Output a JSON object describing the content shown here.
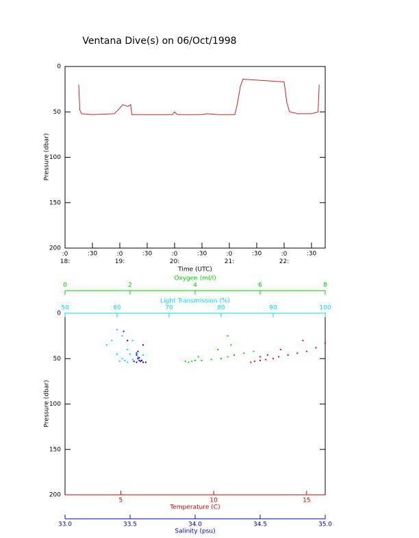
{
  "chart_data": [
    {
      "type": "line",
      "title": "Ventana Dive(s) on 06/Oct/1998",
      "xlabel": "Time (UTC)",
      "ylabel": "Pressure (dbar)",
      "xlim": [
        18,
        22.75
      ],
      "xticks": [
        {
          "value": 18,
          "label": ":0\n18:"
        },
        {
          "value": 18.5,
          "label": ":30"
        },
        {
          "value": 19,
          "label": ":0\n19:"
        },
        {
          "value": 19.5,
          "label": ":30"
        },
        {
          "value": 20,
          "label": ":0\n20:"
        },
        {
          "value": 20.5,
          "label": ":30"
        },
        {
          "value": 21,
          "label": ":0\n21:"
        },
        {
          "value": 21.5,
          "label": ":30"
        },
        {
          "value": 22,
          "label": ":0\n22:"
        },
        {
          "value": 22.5,
          "label": ":30"
        }
      ],
      "ylim": [
        0,
        200
      ],
      "yticks": [
        0,
        50,
        100,
        150,
        200
      ],
      "y_inverted": true,
      "series": [
        {
          "color": "#cc2222",
          "x": [
            18.25,
            18.27,
            18.3,
            18.5,
            18.9,
            19.0,
            19.05,
            19.15,
            19.2,
            19.22,
            19.5,
            19.96,
            20.0,
            20.05,
            20.5,
            20.6,
            20.8,
            21.1,
            21.15,
            21.2,
            21.25,
            21.5,
            22.0,
            22.05,
            22.1,
            22.25,
            22.5,
            22.62,
            22.64
          ],
          "values": [
            20,
            48,
            52,
            53,
            52,
            46,
            42,
            44,
            42,
            53,
            53,
            53,
            50,
            53,
            53,
            52,
            53,
            53,
            40,
            22,
            14,
            15,
            17,
            40,
            50,
            52,
            52,
            50,
            20
          ]
        }
      ]
    },
    {
      "type": "scatter",
      "ylabel": "Pressure (dbar)",
      "ylim": [
        0,
        200
      ],
      "yticks": [
        0,
        50,
        100,
        150,
        200
      ],
      "y_inverted": true,
      "xaxes": [
        {
          "label": "Oxygen (ml/l)",
          "color": "#00cc00",
          "xlim": [
            0,
            8
          ],
          "xticks": [
            0,
            2,
            4,
            6,
            8
          ]
        },
        {
          "label": "Light Transmission (%)",
          "color": "#00dddd",
          "xlim": [
            50,
            100
          ],
          "xticks": [
            50,
            60,
            70,
            80,
            90,
            100
          ]
        },
        {
          "label": "Temperature (C)",
          "color": "#cc0000",
          "xlim": [
            2,
            16
          ],
          "xticks": [
            5,
            10,
            15
          ]
        },
        {
          "label": "Salinity (psu)",
          "color": "#0000bb",
          "xlim": [
            33,
            35
          ],
          "xticks": [
            {
              "value": 33,
              "label": "33.0"
            },
            33.5,
            {
              "value": 34,
              "label": "34.0"
            },
            34.5,
            {
              "value": 35,
              "label": "35.0"
            }
          ]
        }
      ],
      "series": [
        {
          "xaxis": 3,
          "color": "#0000cc",
          "x": [
            33.55,
            33.55,
            33.56,
            33.57,
            33.58,
            33.6,
            33.62,
            33.53,
            33.55,
            33.59,
            33.57,
            33.56,
            33.48,
            33.45,
            33.6
          ],
          "values": [
            44,
            46,
            50,
            52,
            53,
            54,
            54,
            53,
            54,
            52,
            49,
            42,
            30,
            20,
            35
          ]
        },
        {
          "xaxis": 1,
          "color": "#00dddd",
          "x": [
            60,
            61,
            59,
            62,
            62.5,
            61,
            61.5,
            60.5,
            62,
            63,
            64,
            65,
            60,
            58,
            63
          ],
          "values": [
            18,
            25,
            30,
            40,
            45,
            50,
            52,
            53,
            54,
            51,
            48,
            46,
            45,
            35,
            30
          ]
        },
        {
          "xaxis": 0,
          "color": "#00dd00",
          "x": [
            3.7,
            3.8,
            3.9,
            4.0,
            4.1,
            4.2,
            4.5,
            4.8,
            5.0,
            5.2,
            5.5,
            5.8,
            5.1,
            5.0,
            4.7
          ],
          "values": [
            53,
            54,
            53,
            52,
            48,
            52,
            51,
            50,
            48,
            46,
            44,
            42,
            35,
            25,
            40
          ]
        },
        {
          "xaxis": 2,
          "color": "#ff0000",
          "x": [
            12.0,
            12.2,
            12.5,
            12.5,
            12.8,
            13.2,
            13.5,
            14.0,
            14.5,
            15.0,
            15.5,
            16.0,
            14.8,
            13.6,
            12.9
          ],
          "values": [
            54,
            53,
            52,
            48,
            51,
            50,
            48,
            46,
            44,
            42,
            38,
            33,
            30,
            40,
            46
          ]
        }
      ]
    }
  ]
}
